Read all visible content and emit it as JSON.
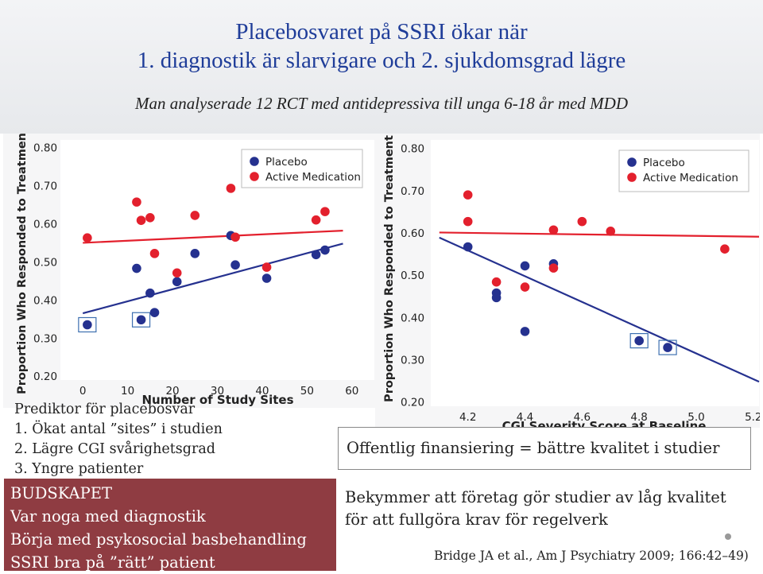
{
  "title": {
    "line1": "Placebosvaret på SSRI ökar när",
    "line2": "1. diagnostik är slarvigare och 2. sjukdomsgrad lägre"
  },
  "subtitle": "Man analyserade 12 RCT med antidepressiva till unga 6-18 år med MDD",
  "predictors": {
    "heading": "Prediktor för placebosvar",
    "items": [
      "1.  Ökat antal ”sites” i studien",
      "2.  Lägre CGI svårighetsgrad",
      "3.  Yngre patienter"
    ]
  },
  "takeaway": {
    "heading": "BUDSKAPET",
    "lines": [
      "Var noga med diagnostik",
      "Börja med psykosocial basbehandling",
      "SSRI bra på ”rätt” patient"
    ]
  },
  "funding_box": "Offentlig finansiering = bättre kvalitet i studier",
  "concern": {
    "line1": "Bekymmer att företag gör studier av låg kvalitet",
    "line2": "för att fullgöra krav för regelverk"
  },
  "citation": "Bridge JA et al., Am J Psychiatry 2009; 166:42–49)",
  "colors": {
    "placebo": "#25318f",
    "active": "#e3202d",
    "title": "#1f3d99",
    "takeaway_bg": "#8f3c42"
  },
  "chart_data": [
    {
      "type": "scatter",
      "xlabel": "Number of Study Sites",
      "ylabel": "Proportion Who Responded to Treatment",
      "xlim": [
        -5,
        65
      ],
      "ylim": [
        0.19,
        0.82
      ],
      "xticks": [
        "0",
        "10",
        "20",
        "30",
        "40",
        "50",
        "60"
      ],
      "yticks": [
        "0.20",
        "0.30",
        "0.40",
        "0.50",
        "0.60",
        "0.70",
        "0.80"
      ],
      "legend": [
        "Placebo",
        "Active Medication"
      ],
      "series": [
        {
          "name": "Placebo",
          "points": [
            [
              1,
              0.335
            ],
            [
              12,
              0.483
            ],
            [
              13,
              0.348
            ],
            [
              15,
              0.418
            ],
            [
              16,
              0.367
            ],
            [
              21,
              0.448
            ],
            [
              25,
              0.522
            ],
            [
              33,
              0.569
            ],
            [
              34,
              0.492
            ],
            [
              41,
              0.457
            ],
            [
              52,
              0.519
            ],
            [
              54,
              0.531
            ]
          ],
          "highlighted": [
            0,
            2
          ],
          "trend": [
            [
              0,
              0.365
            ],
            [
              58,
              0.548
            ]
          ]
        },
        {
          "name": "Active Medication",
          "points": [
            [
              1,
              0.563
            ],
            [
              12,
              0.657
            ],
            [
              13,
              0.609
            ],
            [
              15,
              0.616
            ],
            [
              16,
              0.522
            ],
            [
              21,
              0.471
            ],
            [
              25,
              0.622
            ],
            [
              33,
              0.693
            ],
            [
              34,
              0.565
            ],
            [
              41,
              0.486
            ],
            [
              52,
              0.61
            ],
            [
              54,
              0.632
            ]
          ],
          "trend": [
            [
              0,
              0.55
            ],
            [
              58,
              0.582
            ]
          ]
        }
      ]
    },
    {
      "type": "scatter",
      "xlabel": "CGI Severity Score at Baseline",
      "ylabel": "Proportion Who Responded to Treatment",
      "xlim": [
        4.07,
        5.22
      ],
      "ylim": [
        0.19,
        0.82
      ],
      "xticks": [
        "4.2",
        "4.4",
        "4.6",
        "4.8",
        "5.0",
        "5.2"
      ],
      "yticks": [
        "0.20",
        "0.30",
        "0.40",
        "0.50",
        "0.60",
        "0.70",
        "0.80"
      ],
      "legend": [
        "Placebo",
        "Active Medication"
      ],
      "series": [
        {
          "name": "Placebo",
          "points": [
            [
              4.2,
              0.567
            ],
            [
              4.3,
              0.458
            ],
            [
              4.3,
              0.447
            ],
            [
              4.4,
              0.367
            ],
            [
              4.4,
              0.522
            ],
            [
              4.5,
              0.527
            ],
            [
              4.8,
              0.345
            ],
            [
              4.9,
              0.329
            ]
          ],
          "highlighted": [
            6,
            7
          ],
          "trend": [
            [
              4.1,
              0.589
            ],
            [
              5.22,
              0.248
            ]
          ]
        },
        {
          "name": "Active Medication",
          "points": [
            [
              4.2,
              0.69
            ],
            [
              4.2,
              0.627
            ],
            [
              4.3,
              0.484
            ],
            [
              4.4,
              0.472
            ],
            [
              4.5,
              0.607
            ],
            [
              4.5,
              0.517
            ],
            [
              4.6,
              0.627
            ],
            [
              4.7,
              0.604
            ],
            [
              5.1,
              0.562
            ]
          ],
          "trend": [
            [
              4.1,
              0.601
            ],
            [
              5.22,
              0.591
            ]
          ]
        }
      ]
    }
  ]
}
